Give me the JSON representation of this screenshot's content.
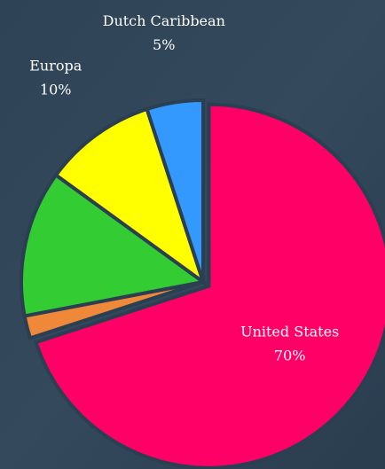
{
  "chart_data": {
    "type": "pie",
    "categories": [
      "United States",
      null,
      null,
      "Europa",
      "Dutch Caribbean"
    ],
    "values": [
      70,
      2,
      13,
      10,
      5
    ],
    "value_labels": [
      "70%",
      null,
      null,
      "10%",
      "5%"
    ],
    "colors": [
      "#ff0066",
      "#f0883a",
      "#33cc33",
      "#ffff00",
      "#3399ff"
    ]
  }
}
